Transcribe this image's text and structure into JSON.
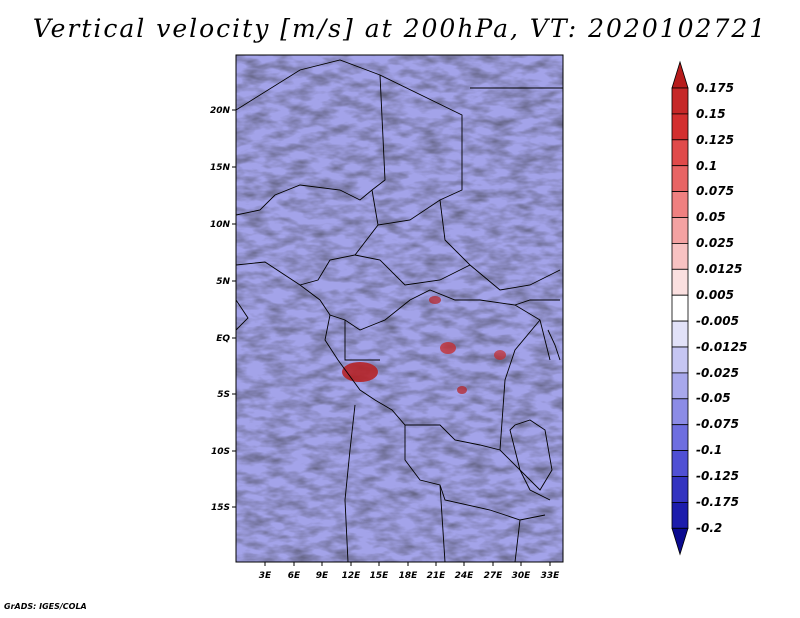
{
  "title": "Vertical velocity [m/s] at 200hPa, VT: 2020102721",
  "credit": "GrADS: IGES/COLA",
  "map": {
    "variable": "Vertical velocity",
    "units": "m/s",
    "level": "200hPa",
    "valid_time": "2020102721",
    "lat_labels": [
      "20N",
      "15N",
      "10N",
      "5N",
      "EQ",
      "5S",
      "10S",
      "15S"
    ],
    "lon_labels": [
      "3E",
      "6E",
      "9E",
      "12E",
      "15E",
      "18E",
      "21E",
      "24E",
      "27E",
      "30E",
      "33E"
    ]
  },
  "colorbar": {
    "labels": [
      "0.175",
      "0.15",
      "0.125",
      "0.1",
      "0.075",
      "0.05",
      "0.025",
      "0.0125",
      "0.005",
      "-0.005",
      "-0.0125",
      "-0.025",
      "-0.05",
      "-0.075",
      "-0.1",
      "-0.125",
      "-0.175",
      "-0.2"
    ],
    "colors": [
      "#b71c1c",
      "#c62828",
      "#d32f2f",
      "#e04a4a",
      "#e86464",
      "#ef8080",
      "#f4a2a2",
      "#f8c2c2",
      "#fbe0e0",
      "#ffffff",
      "#e2e2f8",
      "#c6c6f2",
      "#a8a8ec",
      "#8c8ce6",
      "#6e6ee0",
      "#5050d4",
      "#3333c0",
      "#1c1cac",
      "#0a0a90"
    ]
  }
}
